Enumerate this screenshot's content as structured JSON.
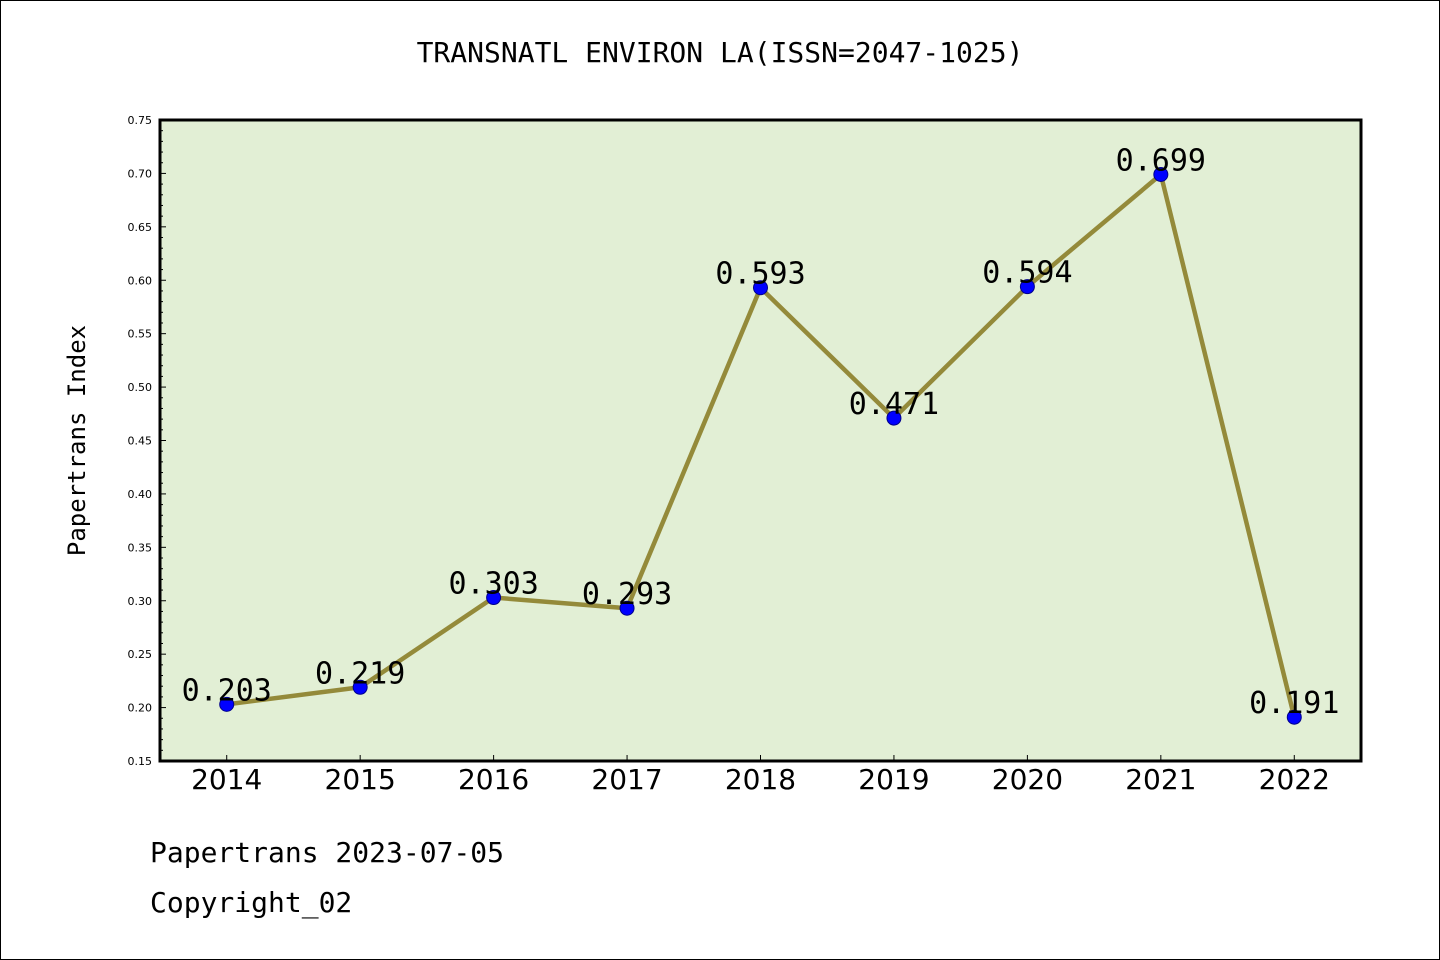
{
  "chart_data": {
    "type": "line",
    "title": "TRANSNATL ENVIRON LA(ISSN=2047-1025)",
    "xlabel": "",
    "ylabel": "Papertrans Index",
    "categories": [
      "2014",
      "2015",
      "2016",
      "2017",
      "2018",
      "2019",
      "2020",
      "2021",
      "2022"
    ],
    "series": [
      {
        "values": [
          0.203,
          0.219,
          0.303,
          0.293,
          0.593,
          0.471,
          0.594,
          0.699,
          0.191
        ],
        "labels": [
          "0.203",
          "0.219",
          "0.303",
          "0.293",
          "0.593",
          "0.471",
          "0.594",
          "0.699",
          "0.191"
        ]
      }
    ],
    "ylim": [
      0.15,
      0.75
    ],
    "yticks": [
      "0.15",
      "0.20",
      "0.25",
      "0.30",
      "0.35",
      "0.40",
      "0.45",
      "0.50",
      "0.55",
      "0.60",
      "0.65",
      "0.70",
      "0.75"
    ],
    "grid": false,
    "colors": {
      "plot_background": "#e2efd5",
      "line": "#948a3a",
      "marker_fill": "#0000ff",
      "marker_edge": "#00008b"
    }
  },
  "footer": {
    "line1": "Papertrans 2023-07-05",
    "line2": "Copyright_02"
  }
}
